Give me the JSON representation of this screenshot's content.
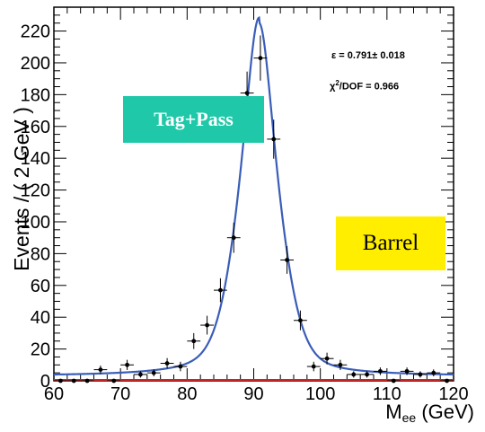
{
  "chart_data": {
    "type": "scatter",
    "ylabel": "Events / ( 2 GeV )",
    "xlabel_main": "M",
    "xlabel_sub": "ee",
    "xlabel_unit": " (GeV)",
    "xlim": [
      60,
      120
    ],
    "ylim": [
      0,
      235
    ],
    "x_ticks": [
      60,
      70,
      80,
      90,
      100,
      110,
      120
    ],
    "y_ticks": [
      0,
      20,
      40,
      60,
      80,
      100,
      120,
      140,
      160,
      180,
      200,
      220
    ],
    "x_tick_labels": [
      "60",
      "70",
      "80",
      "90",
      "100",
      "110",
      "120"
    ],
    "y_tick_labels": [
      "0",
      "20",
      "40",
      "60",
      "80",
      "100",
      "120",
      "140",
      "160",
      "180",
      "200",
      "220"
    ],
    "series": [
      {
        "type": "points_with_errors",
        "x": [
          61,
          63,
          65,
          67,
          69,
          71,
          73,
          75,
          77,
          79,
          81,
          83,
          85,
          87,
          89,
          91,
          93,
          95,
          97,
          99,
          101,
          103,
          105,
          107,
          109,
          111,
          113,
          115,
          117,
          119
        ],
        "y": [
          0,
          0,
          0,
          7,
          0,
          10,
          4,
          5,
          11,
          9,
          25,
          35,
          57,
          90,
          181,
          203,
          152,
          76,
          38,
          9,
          14,
          10,
          4,
          4,
          6,
          0,
          6,
          4,
          5,
          0
        ],
        "yerr": [
          0,
          0,
          0,
          2.6,
          0,
          3.2,
          2,
          2.2,
          3.3,
          3,
          5,
          5.9,
          7.5,
          9.5,
          13.5,
          14.2,
          12.3,
          8.7,
          6.2,
          3,
          3.7,
          3.2,
          2,
          2,
          2.4,
          0,
          2.4,
          2,
          2.2,
          0
        ],
        "xerr": 1,
        "color": "#000000"
      },
      {
        "type": "fit_curve",
        "model": "voigtian",
        "peak_x": 90.8,
        "peak_y": 225,
        "halfwidth": 2.6,
        "background": 3,
        "color": "#3a5db8"
      }
    ],
    "baseline_color": "#d62020",
    "grid": false
  },
  "annotations": {
    "tag_box": "Tag+Pass",
    "tag_box_color": "#1fc8a8",
    "region_box": "Barrel",
    "region_box_color": "#ffee00",
    "efficiency": "ε = 0.791± 0.018",
    "chi_symbol": "χ",
    "chi_power": "2",
    "chi_rest": "/DOF = 0.966"
  }
}
